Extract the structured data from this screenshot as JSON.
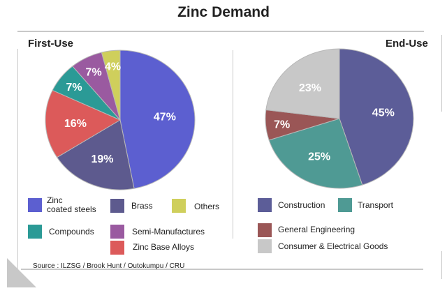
{
  "title": "Zinc Demand",
  "source": "Source : ILZSG / Brook Hunt / Outokumpu / CRU",
  "chart_data": [
    {
      "type": "pie",
      "title": "First-Use",
      "categories": [
        "Zinc coated steels",
        "Brass",
        "Zinc Base Alloys",
        "Compounds",
        "Semi-Manufactures",
        "Others"
      ],
      "values": [
        47,
        19,
        16,
        7,
        7,
        4
      ],
      "labels": [
        "47%",
        "19%",
        "16%",
        "7%",
        "7%",
        "4%"
      ],
      "colors": [
        "#5c5fd0",
        "#5d5a8e",
        "#dc5a5a",
        "#2b9a96",
        "#9a5aa0",
        "#cfcf5c"
      ],
      "legend": [
        {
          "label_lines": [
            "Zinc",
            "coated steels"
          ],
          "color": "#5c5fd0"
        },
        {
          "label_lines": [
            "Brass"
          ],
          "color": "#5d5a8e"
        },
        {
          "label_lines": [
            "Others"
          ],
          "color": "#cfcf5c"
        },
        {
          "label_lines": [
            "Compounds"
          ],
          "color": "#2b9a96"
        },
        {
          "label_lines": [
            "Semi-Manufactures"
          ],
          "color": "#9a5aa0"
        },
        {
          "label_lines": [
            "Zinc Base Alloys"
          ],
          "color": "#dc5a5a"
        }
      ]
    },
    {
      "type": "pie",
      "title": "End-Use",
      "categories": [
        "Construction",
        "Transport",
        "General Engineering",
        "Consumer & Electrical Goods"
      ],
      "values": [
        45,
        25,
        7,
        23
      ],
      "labels": [
        "45%",
        "25%",
        "7%",
        "23%"
      ],
      "colors": [
        "#5c5d98",
        "#4f9a94",
        "#9a5656",
        "#c8c8c8"
      ],
      "legend": [
        {
          "label_lines": [
            "Construction"
          ],
          "color": "#5c5d98"
        },
        {
          "label_lines": [
            "Transport"
          ],
          "color": "#4f9a94"
        },
        {
          "label_lines": [
            "General Engineering"
          ],
          "color": "#9a5656"
        },
        {
          "label_lines": [
            "Consumer & Electrical Goods"
          ],
          "color": "#c8c8c8"
        }
      ]
    }
  ]
}
